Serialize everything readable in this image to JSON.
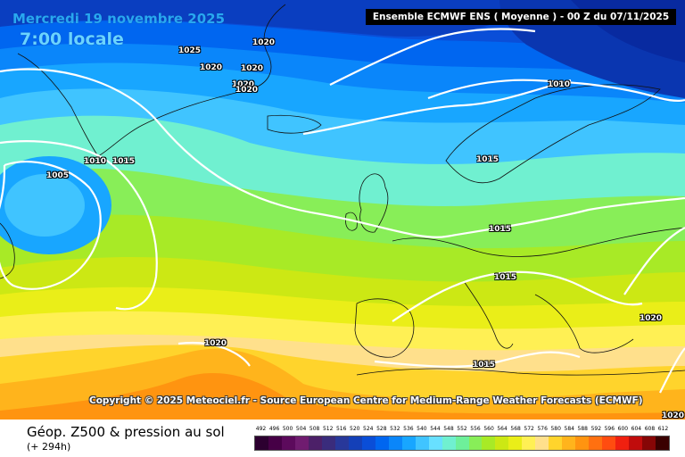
{
  "map": {
    "date": "Mercredi 19 novembre 2025",
    "local_time": "7:00 locale",
    "model_run": "Ensemble ECMWF ENS  ( Moyenne )  -  00 Z du 07/11/2025",
    "copyright": "Copyright © 2025 Meteociel.fr - Source European Centre for Medium-Range Weather Forecasts (ECMWF)",
    "isobar_labels": [
      "1025",
      "1020",
      "1020",
      "1020",
      "1020",
      "1020",
      "1005",
      "1010",
      "1015",
      "1010",
      "1015",
      "1015",
      "1015",
      "1015",
      "1020",
      "1020",
      "1020"
    ]
  },
  "footer": {
    "title": "Géop. Z500 & pression au sol",
    "subtitle": "(+ 294h)"
  },
  "legend": {
    "levels": [
      "492",
      "496",
      "500",
      "504",
      "508",
      "512",
      "516",
      "520",
      "524",
      "528",
      "532",
      "536",
      "540",
      "544",
      "548",
      "552",
      "556",
      "560",
      "564",
      "568",
      "572",
      "576",
      "580",
      "584",
      "588",
      "592",
      "596",
      "600",
      "604",
      "608",
      "612"
    ],
    "colors": [
      "#2c0030",
      "#460046",
      "#5c0a5c",
      "#701c70",
      "#4c2068",
      "#3a2c7c",
      "#28389a",
      "#1440b8",
      "#0a4ed8",
      "#0066f0",
      "#0a86fa",
      "#18a6ff",
      "#40c4ff",
      "#68e0ff",
      "#70f0d0",
      "#6ef09a",
      "#88ee58",
      "#a8ea26",
      "#cce814",
      "#eaee18",
      "#fff054",
      "#ffe08c",
      "#ffd42c",
      "#ffb41c",
      "#ff9410",
      "#ff7010",
      "#ff4c10",
      "#f02010",
      "#c00c0c",
      "#860606",
      "#3a0000"
    ]
  }
}
